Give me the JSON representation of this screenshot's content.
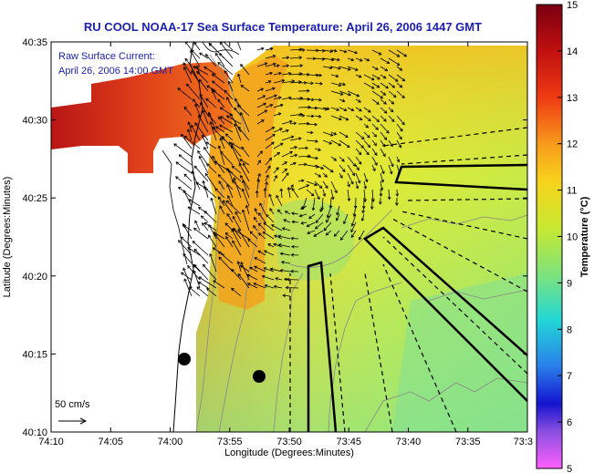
{
  "title": "RU COOL  NOAA-17  Sea Surface Temperature:  April 26, 2006 1447 GMT",
  "legend": {
    "line1": "Raw Surface Current:",
    "line2": "April 26, 2006 14:00 GMT",
    "scale_label": "50 cm/s"
  },
  "axes": {
    "xlabel": "Longitude (Degrees:Minutes)",
    "ylabel": "Latitude (Degrees:Minutes)",
    "x_ticks": [
      "74:10",
      "74:05",
      "74:00",
      "73:55",
      "73:50",
      "73:45",
      "73:40",
      "73:35",
      "73:3"
    ],
    "y_ticks": [
      "40:35",
      "40:30",
      "40:25",
      "40:20",
      "40:15",
      "40:10"
    ]
  },
  "colorbar": {
    "label": "Temperature (°C)",
    "ticks": [
      "15",
      "14",
      "13",
      "12",
      "11",
      "10",
      "9",
      "8",
      "7",
      "6",
      "5"
    ],
    "range": [
      5,
      15
    ]
  },
  "colors": {
    "title": "#1b1fb0",
    "land": "#ffffff",
    "coast": "#000000"
  }
}
